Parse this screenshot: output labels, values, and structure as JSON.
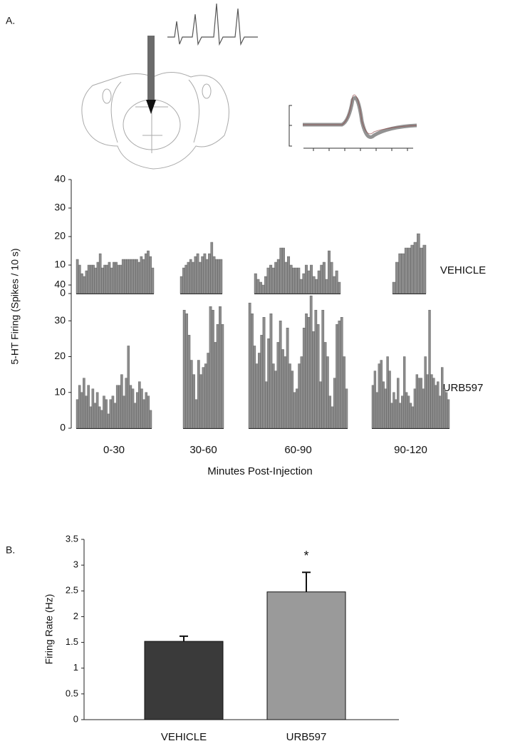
{
  "chart_data": [
    {
      "type": "spike-histogram",
      "panel_label": "A.",
      "ylabel": "5-HT Firing (Spikes / 10 s)",
      "xlabel": "Minutes Post-Injection",
      "categories": [
        "0-30",
        "30-60",
        "60-90",
        "90-120"
      ],
      "ylim": [
        0,
        40
      ],
      "yticks": [
        0,
        10,
        20,
        30,
        40
      ],
      "series": [
        {
          "name": "VEHICLE",
          "color": "#8c8c8c",
          "segments": [
            [
              12,
              10,
              7,
              6,
              8,
              10,
              10,
              10,
              9,
              11,
              14,
              9,
              10,
              10,
              11,
              9,
              11,
              11,
              10,
              10,
              12,
              12,
              12,
              12,
              12,
              12,
              12,
              11,
              13,
              12,
              14,
              15,
              13,
              9
            ],
            [
              6,
              9,
              10,
              11,
              12,
              11,
              13,
              14,
              11,
              13,
              14,
              12,
              14,
              18,
              13,
              12,
              12,
              12
            ],
            [
              7,
              5,
              4,
              3,
              6,
              9,
              10,
              9,
              11,
              12,
              16,
              16,
              11,
              13,
              10,
              9,
              9,
              9,
              5,
              7,
              10,
              8,
              10,
              6,
              5,
              8,
              10,
              11,
              5,
              15,
              11,
              6,
              8,
              4
            ],
            [
              4,
              11,
              14,
              14,
              16,
              16,
              17,
              18,
              21,
              16,
              17
            ]
          ]
        },
        {
          "name": "URB597",
          "color": "#8c8c8c",
          "segments": [
            [
              8,
              12,
              10,
              14,
              9,
              12,
              6,
              11,
              7,
              10,
              6,
              5,
              9,
              8,
              4,
              8,
              9,
              7,
              12,
              12,
              15,
              9,
              14,
              23,
              12,
              11,
              7,
              10,
              13,
              11,
              8,
              10,
              9,
              5
            ],
            [
              33,
              32,
              26,
              19,
              15,
              8,
              19,
              15,
              17,
              18,
              21,
              34,
              33,
              24,
              29,
              34,
              29
            ],
            [
              35,
              32,
              23,
              18,
              21,
              26,
              31,
              13,
              25,
              32,
              18,
              16,
              24,
              30,
              22,
              20,
              28,
              18,
              16,
              10,
              11,
              18,
              20,
              28,
              32,
              31,
              37,
              27,
              33,
              29,
              13,
              33,
              24,
              20,
              9,
              6,
              14,
              29,
              30,
              31,
              20,
              11
            ],
            [
              12,
              16,
              10,
              18,
              19,
              13,
              11,
              20,
              16,
              7,
              10,
              8,
              14,
              7,
              9,
              20,
              10,
              9,
              7,
              6,
              11,
              15,
              14,
              14,
              11,
              20,
              15,
              33,
              15,
              14,
              12,
              13,
              9,
              17,
              11,
              10,
              8
            ]
          ]
        }
      ]
    },
    {
      "type": "bar",
      "panel_label": "B.",
      "ylabel": "Firing Rate (Hz)",
      "categories": [
        "VEHICLE",
        "URB597"
      ],
      "values": [
        1.52,
        2.48
      ],
      "errors": [
        0.1,
        0.38
      ],
      "colors": [
        "#3a3a3a",
        "#9a9a9a"
      ],
      "ylim": [
        0,
        3.5
      ],
      "yticks": [
        0,
        0.5,
        1,
        1.5,
        2,
        2.5,
        3,
        3.5
      ],
      "annotations": [
        {
          "text": "*",
          "category": 1
        }
      ]
    }
  ]
}
